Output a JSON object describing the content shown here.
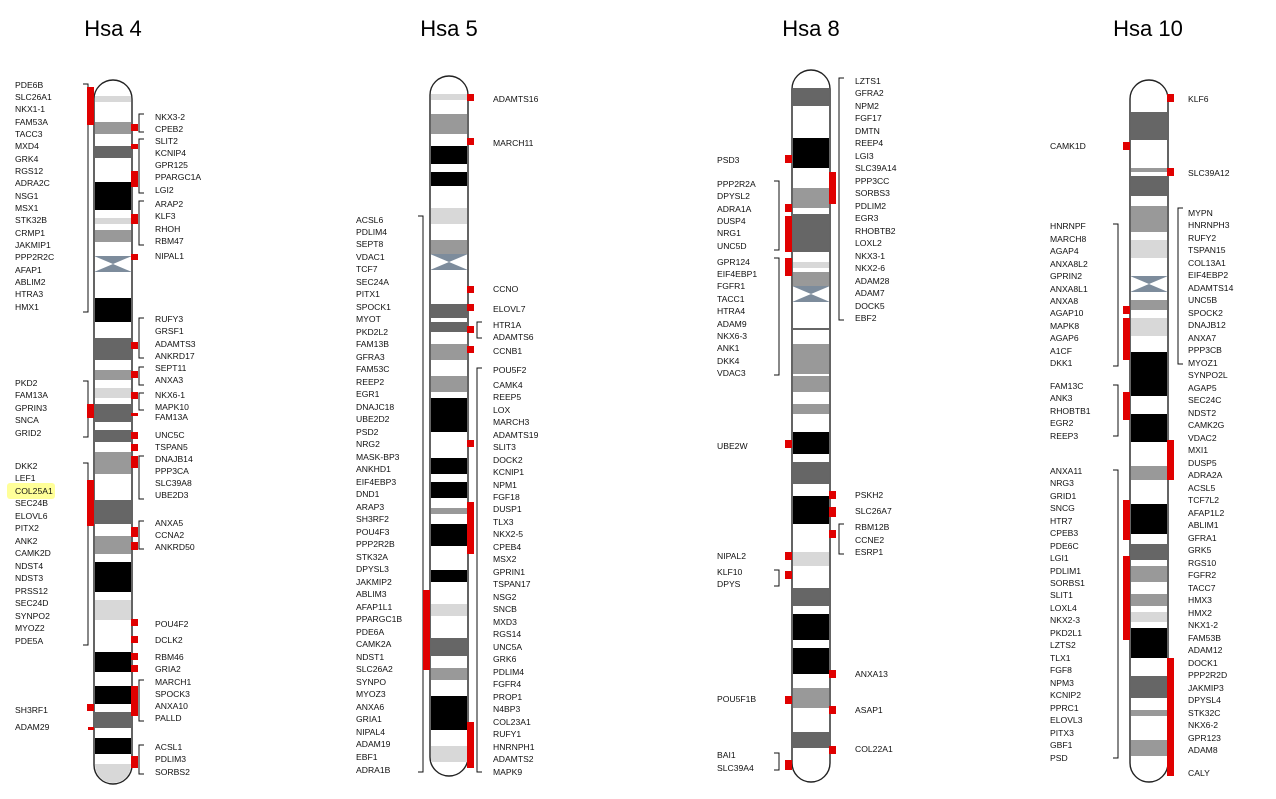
{
  "chromosomes": [
    {
      "title": "Hsa 4",
      "left_genes": [
        "PDE6B",
        "SLC26A1",
        "NKX1-1",
        "FAM53A",
        "TACC3",
        "MXD4",
        "GRK4",
        "RGS12",
        "ADRA2C",
        "NSG1",
        "MSX1",
        "STK32B",
        "CRMP1",
        "JAKMIP1",
        "PPP2R2C",
        "AFAP1",
        "ABLIM2",
        "HTRA3",
        "HMX1",
        "PKD2",
        "FAM13A",
        "GPRIN3",
        "SNCA",
        "GRID2",
        "DKK2",
        "LEF1",
        "COL25A1",
        "SEC24B",
        "ELOVL6",
        "PITX2",
        "ANK2",
        "CAMK2D",
        "NDST4",
        "NDST3",
        "PRSS12",
        "SEC24D",
        "SYNPO2",
        "MYOZ2",
        "PDE5A",
        "SH3RF1",
        "ADAM29"
      ],
      "right_genes": [
        "NKX3-2",
        "CPEB2",
        "SLIT2",
        "KCNIP4",
        "GPR125",
        "PPARGC1A",
        "LGI2",
        "ARAP2",
        "KLF3",
        "RHOH",
        "RBM47",
        "NIPAL1",
        "RUFY3",
        "GRSF1",
        "ADAMTS3",
        "ANKRD17",
        "SEPT11",
        "ANXA3",
        "NKX6-1",
        "MAPK10",
        "FAM13A",
        "UNC5C",
        "TSPAN5",
        "DNAJB14",
        "PPP3CA",
        "SLC39A8",
        "UBE2D3",
        "ANXA5",
        "CCNA2",
        "ANKRD50",
        "POU4F2",
        "DCLK2",
        "RBM46",
        "GRIA2",
        "MARCH1",
        "SPOCK3",
        "ANXA10",
        "PALLD",
        "ACSL1",
        "PDLIM3",
        "SORBS2"
      ],
      "highlighted_gene": "COL25A1",
      "highlight_color": "#ffff99"
    },
    {
      "title": "Hsa 5",
      "left_genes": [
        "ACSL6",
        "PDLIM4",
        "SEPT8",
        "VDAC1",
        "TCF7",
        "SEC24A",
        "PITX1",
        "SPOCK1",
        "MYOT",
        "PKD2L2",
        "FAM13B",
        "GFRA3",
        "FAM53C",
        "REEP2",
        "EGR1",
        "DNAJC18",
        "UBE2D2",
        "PSD2",
        "NRG2",
        "MASK-BP3",
        "ANKHD1",
        "EIF4EBP3",
        "DND1",
        "ARAP3",
        "SH3RF2",
        "POU4F3",
        "PPP2R2B",
        "STK32A",
        "DPYSL3",
        "JAKMIP2",
        "ABLIM3",
        "AFAP1L1",
        "PPARGC1B",
        "PDE6A",
        "CAMK2A",
        "NDST1",
        "SLC26A2",
        "SYNPO",
        "MYOZ3",
        "ANXA6",
        "GRIA1",
        "NIPAL4",
        "ADAM19",
        "EBF1",
        "ADRA1B"
      ],
      "right_genes": [
        "ADAMTS16",
        "MARCH11",
        "CCNO",
        "ELOVL7",
        "HTR1A",
        "ADAMTS6",
        "CCNB1",
        "POU5F2",
        "CAMK4",
        "REEP5",
        "LOX",
        "MARCH3",
        "ADAMTS19",
        "SLIT3",
        "DOCK2",
        "KCNIP1",
        "NPM1",
        "FGF18",
        "DUSP1",
        "TLX3",
        "NKX2-5",
        "CPEB4",
        "MSX2",
        "GPRIN1",
        "TSPAN17",
        "NSG2",
        "SNCB",
        "MXD3",
        "RGS14",
        "UNC5A",
        "GRK6",
        "PDLIM4",
        "FGFR4",
        "PROP1",
        "N4BP3",
        "COL23A1",
        "RUFY1",
        "HNRNPH1",
        "ADAMTS2",
        "MAPK9"
      ]
    },
    {
      "title": "Hsa 8",
      "left_genes": [
        "PSD3",
        "PPP2R2A",
        "DPYSL2",
        "ADRA1A",
        "DUSP4",
        "NRG1",
        "UNC5D",
        "GPR124",
        "EIF4EBP1",
        "FGFR1",
        "TACC1",
        "HTRA4",
        "ADAM9",
        "NKX6-3",
        "ANK1",
        "DKK4",
        "VDAC3",
        "UBE2W",
        "NIPAL2",
        "KLF10",
        "DPYS",
        "POU5F1B",
        "BAI1",
        "SLC39A4"
      ],
      "right_genes": [
        "LZTS1",
        "GFRA2",
        "NPM2",
        "FGF17",
        "DMTN",
        "REEP4",
        "LGI3",
        "SLC39A14",
        "PPP3CC",
        "SORBS3",
        "PDLIM2",
        "EGR3",
        "RHOBTB2",
        "LOXL2",
        "NKX3-1",
        "NKX2-6",
        "ADAM28",
        "ADAM7",
        "DOCK5",
        "EBF2",
        "PSKH2",
        "SLC26A7",
        "RBM12B",
        "CCNE2",
        "ESRP1",
        "ANXA13",
        "ASAP1",
        "COL22A1"
      ]
    },
    {
      "title": "Hsa 10",
      "left_genes": [
        "CAMK1D",
        "HNRNPF",
        "MARCH8",
        "AGAP4",
        "ANXA8L2",
        "GPRIN2",
        "ANXA8L1",
        "ANXA8",
        "AGAP10",
        "MAPK8",
        "AGAP6",
        "A1CF",
        "DKK1",
        "FAM13C",
        "ANK3",
        "RHOBTB1",
        "EGR2",
        "REEP3",
        "ANXA11",
        "NRG3",
        "GRID1",
        "SNCG",
        "HTR7",
        "CPEB3",
        "PDE6C",
        "LGI1",
        "PDLIM1",
        "SORBS1",
        "SLIT1",
        "LOXL4",
        "NKX2-3",
        "PKD2L1",
        "LZTS2",
        "TLX1",
        "FGF8",
        "NPM3",
        "KCNIP2",
        "PPRC1",
        "ELOVL3",
        "PITX3",
        "GBF1",
        "PSD"
      ],
      "right_genes": [
        "KLF6",
        "SLC39A12",
        "MYPN",
        "HNRNPH3",
        "RUFY2",
        "TSPAN15",
        "COL13A1",
        "EIF4EBP2",
        "ADAMTS14",
        "UNC5B",
        "SPOCK2",
        "DNAJB12",
        "ANXA7",
        "PPP3CB",
        "MYOZ1",
        "SYNPO2L",
        "AGAP5",
        "SEC24C",
        "NDST2",
        "CAMK2G",
        "VDAC2",
        "MXI1",
        "DUSP5",
        "ADRA2A",
        "ACSL5",
        "TCF7L2",
        "AFAP1L2",
        "ABLIM1",
        "GFRA1",
        "GRK5",
        "RGS10",
        "FGFR2",
        "TACC7",
        "HMX3",
        "HMX2",
        "NKX1-2",
        "FAM53B",
        "ADAM12",
        "DOCK1",
        "PPP2R2D",
        "JAKMIP3",
        "DPYSL4",
        "STK32C",
        "NKX6-2",
        "GPR123",
        "ADAM8",
        "CALY"
      ]
    }
  ],
  "colors": {
    "marker": "#e00000",
    "chromosome_outline": "#222222",
    "stain_black": "#000000",
    "stain_dark": "#666666",
    "stain_mid": "#999999",
    "stain_light": "#d8d8d8",
    "centromere": "#7d8c9c"
  }
}
